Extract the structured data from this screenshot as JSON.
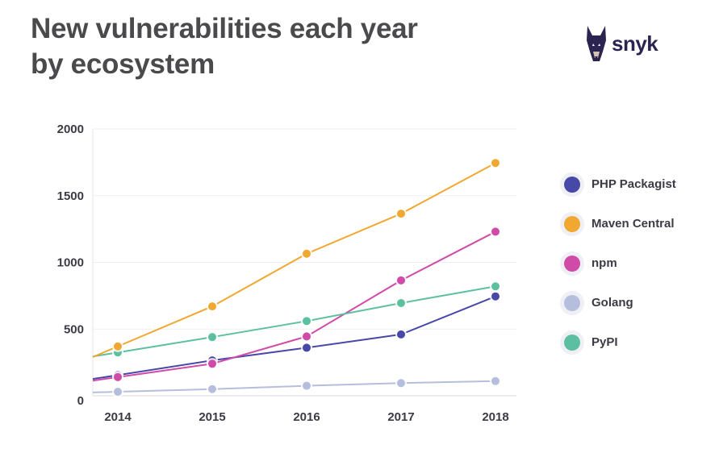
{
  "header": {
    "title_line1": "New vulnerabilities each year",
    "title_line2": "by ecosystem",
    "logo_text": "snyk"
  },
  "chart_data": {
    "type": "line",
    "title": "New vulnerabilities each year by ecosystem",
    "xlabel": "",
    "ylabel": "",
    "categories": [
      "2014",
      "2015",
      "2016",
      "2017",
      "2018"
    ],
    "ylim": [
      0,
      2000
    ],
    "yticks": [
      "0",
      "500",
      "1000",
      "1500",
      "2000"
    ],
    "grid": true,
    "legend": "right",
    "series": [
      {
        "name": "PHP Packagist",
        "color": "#4848a8",
        "values": [
          155,
          265,
          360,
          460,
          745
        ]
      },
      {
        "name": "Maven Central",
        "color": "#f0a830",
        "values": [
          370,
          670,
          1065,
          1365,
          1745
        ]
      },
      {
        "name": "npm",
        "color": "#d04aa8",
        "values": [
          140,
          240,
          445,
          865,
          1230
        ]
      },
      {
        "name": "Golang",
        "color": "#b6bedd",
        "values": [
          30,
          50,
          75,
          95,
          110
        ]
      },
      {
        "name": "PyPI",
        "color": "#5cc0a0",
        "values": [
          325,
          440,
          560,
          695,
          820
        ]
      }
    ]
  }
}
